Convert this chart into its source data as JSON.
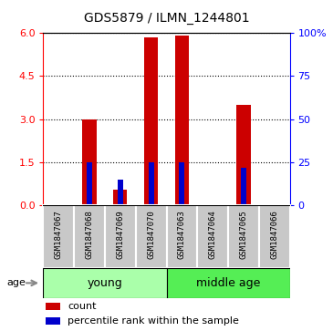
{
  "title": "GDS5879 / ILMN_1244801",
  "samples": [
    "GSM1847067",
    "GSM1847068",
    "GSM1847069",
    "GSM1847070",
    "GSM1847063",
    "GSM1847064",
    "GSM1847065",
    "GSM1847066"
  ],
  "count_values": [
    0,
    3.0,
    0.55,
    5.85,
    5.9,
    0,
    3.5,
    0
  ],
  "percentile_values": [
    0,
    25,
    15,
    25,
    25,
    0,
    22,
    0
  ],
  "left_ylim": [
    0,
    6
  ],
  "left_yticks": [
    0,
    1.5,
    3,
    4.5,
    6
  ],
  "right_ylim": [
    0,
    100
  ],
  "right_yticks": [
    0,
    25,
    50,
    75,
    100
  ],
  "bar_color": "#CC0000",
  "percentile_color": "#0000CC",
  "bg_color": "#C8C8C8",
  "plot_bg": "#FFFFFF",
  "legend_count_label": "count",
  "legend_percentile_label": "percentile rank within the sample",
  "age_label": "age",
  "young_color": "#AAFFAA",
  "middle_color": "#55EE55",
  "bar_width": 0.45,
  "pct_bar_width": 0.18
}
